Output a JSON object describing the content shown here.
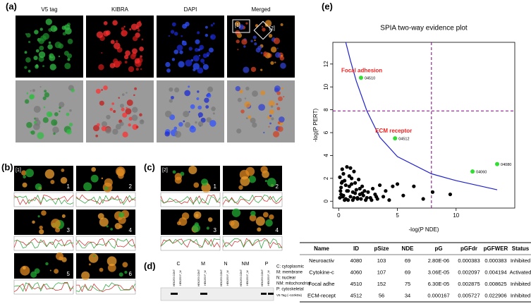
{
  "panels": {
    "a": "(a)",
    "b": "(b)",
    "c": "(c)",
    "d": "(d)",
    "e": "(e)"
  },
  "panel_a": {
    "columns": [
      "V5 tag",
      "KIBRA",
      "DAPI",
      "Merged"
    ],
    "insets": [
      "[1]",
      "[2]"
    ]
  },
  "panel_b": {
    "label": "[1]",
    "numbers": [
      "1",
      "2",
      "3",
      "4",
      "5",
      "6"
    ]
  },
  "panel_c": {
    "label": "[2]",
    "numbers": [
      "1",
      "2",
      "3",
      "4"
    ]
  },
  "panel_d": {
    "lanes": [
      "C",
      "M",
      "N",
      "NM",
      "P"
    ],
    "sublanes": [
      "HEK293 CONT",
      "HEK293 P_W"
    ],
    "legend": [
      "C: cytoplasmic",
      "M: membrane",
      "N: nuclear",
      "NM: mitochondrial",
      "P: cytoskeletal"
    ],
    "band_label": "V5 Tag (~110kDa)"
  },
  "chart_data": {
    "type": "scatter",
    "title": "SPIA two-way evidence plot",
    "xlabel": "-log(P NDE)",
    "ylabel": "-log(P PERT)",
    "xlim": [
      -0.5,
      15
    ],
    "ylim": [
      -0.6,
      13.9
    ],
    "xticks": [
      0,
      5,
      10
    ],
    "yticks": [
      0,
      2,
      4,
      6,
      8,
      10,
      12
    ],
    "points": {
      "color": "#000000",
      "x": [
        0.1,
        0.2,
        0.3,
        0.4,
        0.5,
        0.6,
        0.7,
        0.8,
        0.9,
        1.0,
        1.1,
        1.2,
        1.3,
        1.4,
        1.5,
        1.6,
        1.7,
        1.8,
        1.9,
        2.0,
        2.1,
        2.2,
        2.3,
        2.5,
        2.7,
        2.9,
        3.1,
        3.3,
        3.5,
        3.8,
        4.0,
        4.3,
        4.6,
        5.0,
        5.5,
        6.4,
        7.2,
        8.0,
        9.5,
        0.2,
        0.4,
        0.6,
        0.8,
        1.0,
        1.2,
        1.4,
        1.6,
        1.8,
        2.0,
        2.4,
        2.8,
        3.2,
        0.3,
        0.5,
        0.7,
        0.9,
        1.1,
        1.3,
        0.1,
        0.15,
        0.25,
        0.35
      ],
      "values": [
        0.3,
        1.2,
        2.8,
        0.5,
        1.8,
        0.2,
        3.0,
        0.9,
        2.2,
        0.4,
        1.5,
        0.1,
        2.6,
        0.7,
        1.0,
        0.3,
        1.9,
        0.6,
        0.2,
        1.3,
        0.5,
        0.9,
        0.1,
        0.8,
        0.3,
        1.1,
        0.6,
        0.2,
        1.4,
        0.4,
        0.9,
        0.1,
        1.3,
        1.5,
        0.5,
        1.3,
        0.2,
        0.8,
        0.6,
        0.6,
        2.4,
        1.4,
        0.1,
        2.9,
        0.8,
        1.6,
        0.2,
        1.1,
        0.7,
        0.3,
        0.1,
        0.4,
        1.7,
        0.1,
        0.9,
        1.3,
        2.0,
        0.3,
        2.1,
        0.9,
        1.6,
        0.4
      ]
    },
    "highlighted": {
      "color": "#33dd33",
      "x": [
        1.9,
        4.8,
        11.4,
        13.5
      ],
      "values": [
        10.8,
        5.5,
        2.6,
        3.25
      ],
      "labels": [
        "04510",
        "04512",
        "04060",
        "04080"
      ],
      "names": [
        "Focal adhesion",
        "ECM receptor",
        null,
        null
      ],
      "name_color": "#ee2222"
    },
    "curve": {
      "color": "#2222cc",
      "x": [
        0.6,
        1.0,
        1.5,
        2.4,
        3.5,
        5.0,
        7.9,
        10.0,
        13.5
      ],
      "values": [
        13.9,
        12.3,
        10.5,
        7.9,
        5.6,
        3.9,
        2.4,
        1.8,
        1.0
      ]
    },
    "hlines": [
      7.9
    ],
    "vlines": [
      7.9
    ],
    "threshold_color": "#800080"
  },
  "table": {
    "header": [
      "Name",
      "ID",
      "pSize",
      "NDE",
      "pG",
      "pGFdr",
      "pGFWER",
      "Status"
    ],
    "rows": [
      [
        "Neuroactiv",
        "4080",
        "103",
        "69",
        "2.80E-06",
        "0.000383",
        "0.000383",
        "Inhibited"
      ],
      [
        "Cytokine-c",
        "4060",
        "107",
        "69",
        "3.06E-05",
        "0.002097",
        "0.004194",
        "Activated"
      ],
      [
        "Focal adhe",
        "4510",
        "152",
        "75",
        "6.30E-05",
        "0.002875",
        "0.008625",
        "Inhibited"
      ],
      [
        "ECM-recept",
        "4512",
        "56",
        "34",
        "0.000167",
        "0.005727",
        "0.022906",
        "Inhibited"
      ]
    ]
  }
}
